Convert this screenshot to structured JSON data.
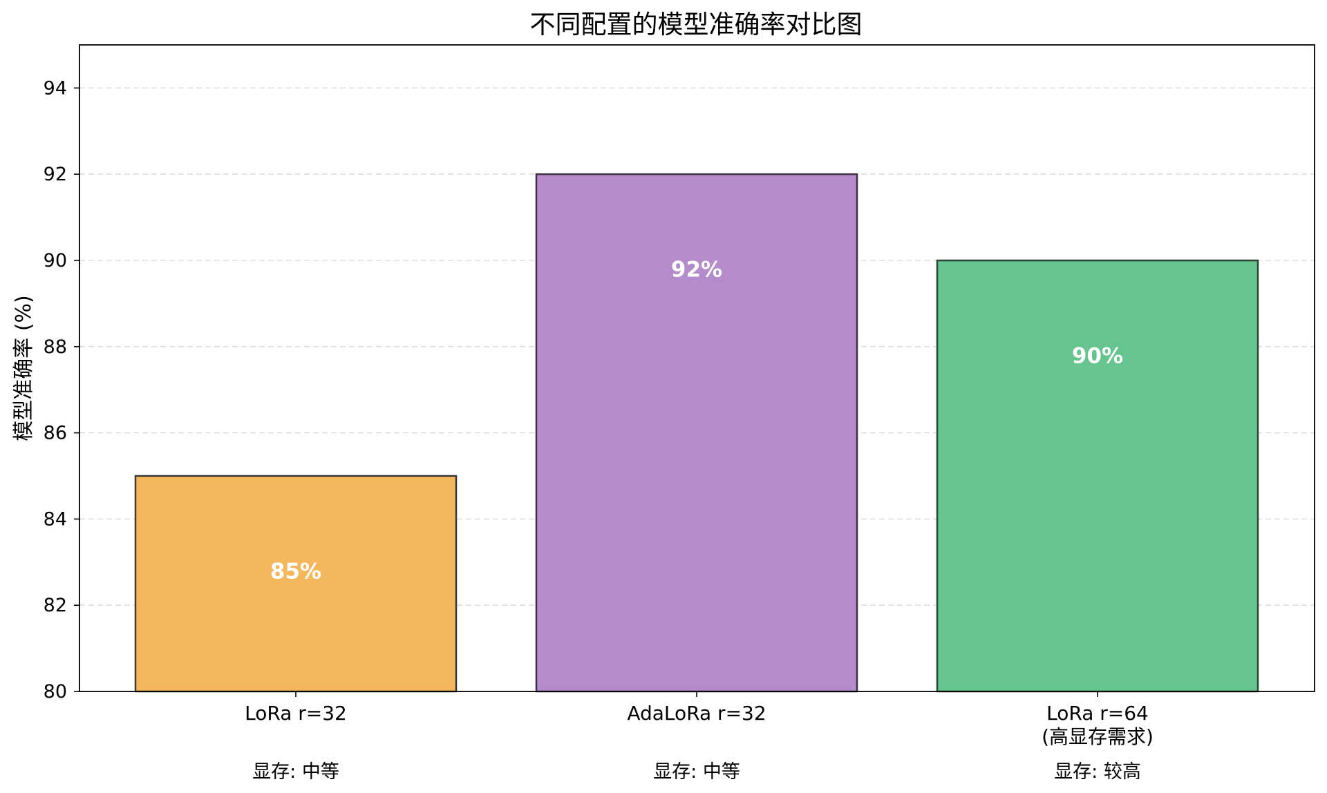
{
  "chart_data": {
    "type": "bar",
    "title": "不同配置的模型准确率对比图",
    "ylabel": "模型准确率 (%)",
    "xlabel": "",
    "ylim": [
      80,
      95
    ],
    "yticks": [
      80,
      82,
      84,
      86,
      88,
      90,
      92,
      94
    ],
    "grid": true,
    "categories": [
      {
        "lines": [
          "LoRa r=32"
        ],
        "memory": "显存: 中等"
      },
      {
        "lines": [
          "AdaLoRa r=32"
        ],
        "memory": "显存: 中等"
      },
      {
        "lines": [
          "LoRa r=64",
          "(高显存需求)"
        ],
        "memory": "显存: 较高"
      }
    ],
    "values": [
      85,
      92,
      90
    ],
    "value_labels": [
      "85%",
      "92%",
      "90%"
    ],
    "colors": [
      "#f5b75b",
      "#b68bcb",
      "#66c58e"
    ],
    "edge_colors": [
      "#3a3a3a",
      "#3a3040",
      "#2a4535"
    ]
  }
}
